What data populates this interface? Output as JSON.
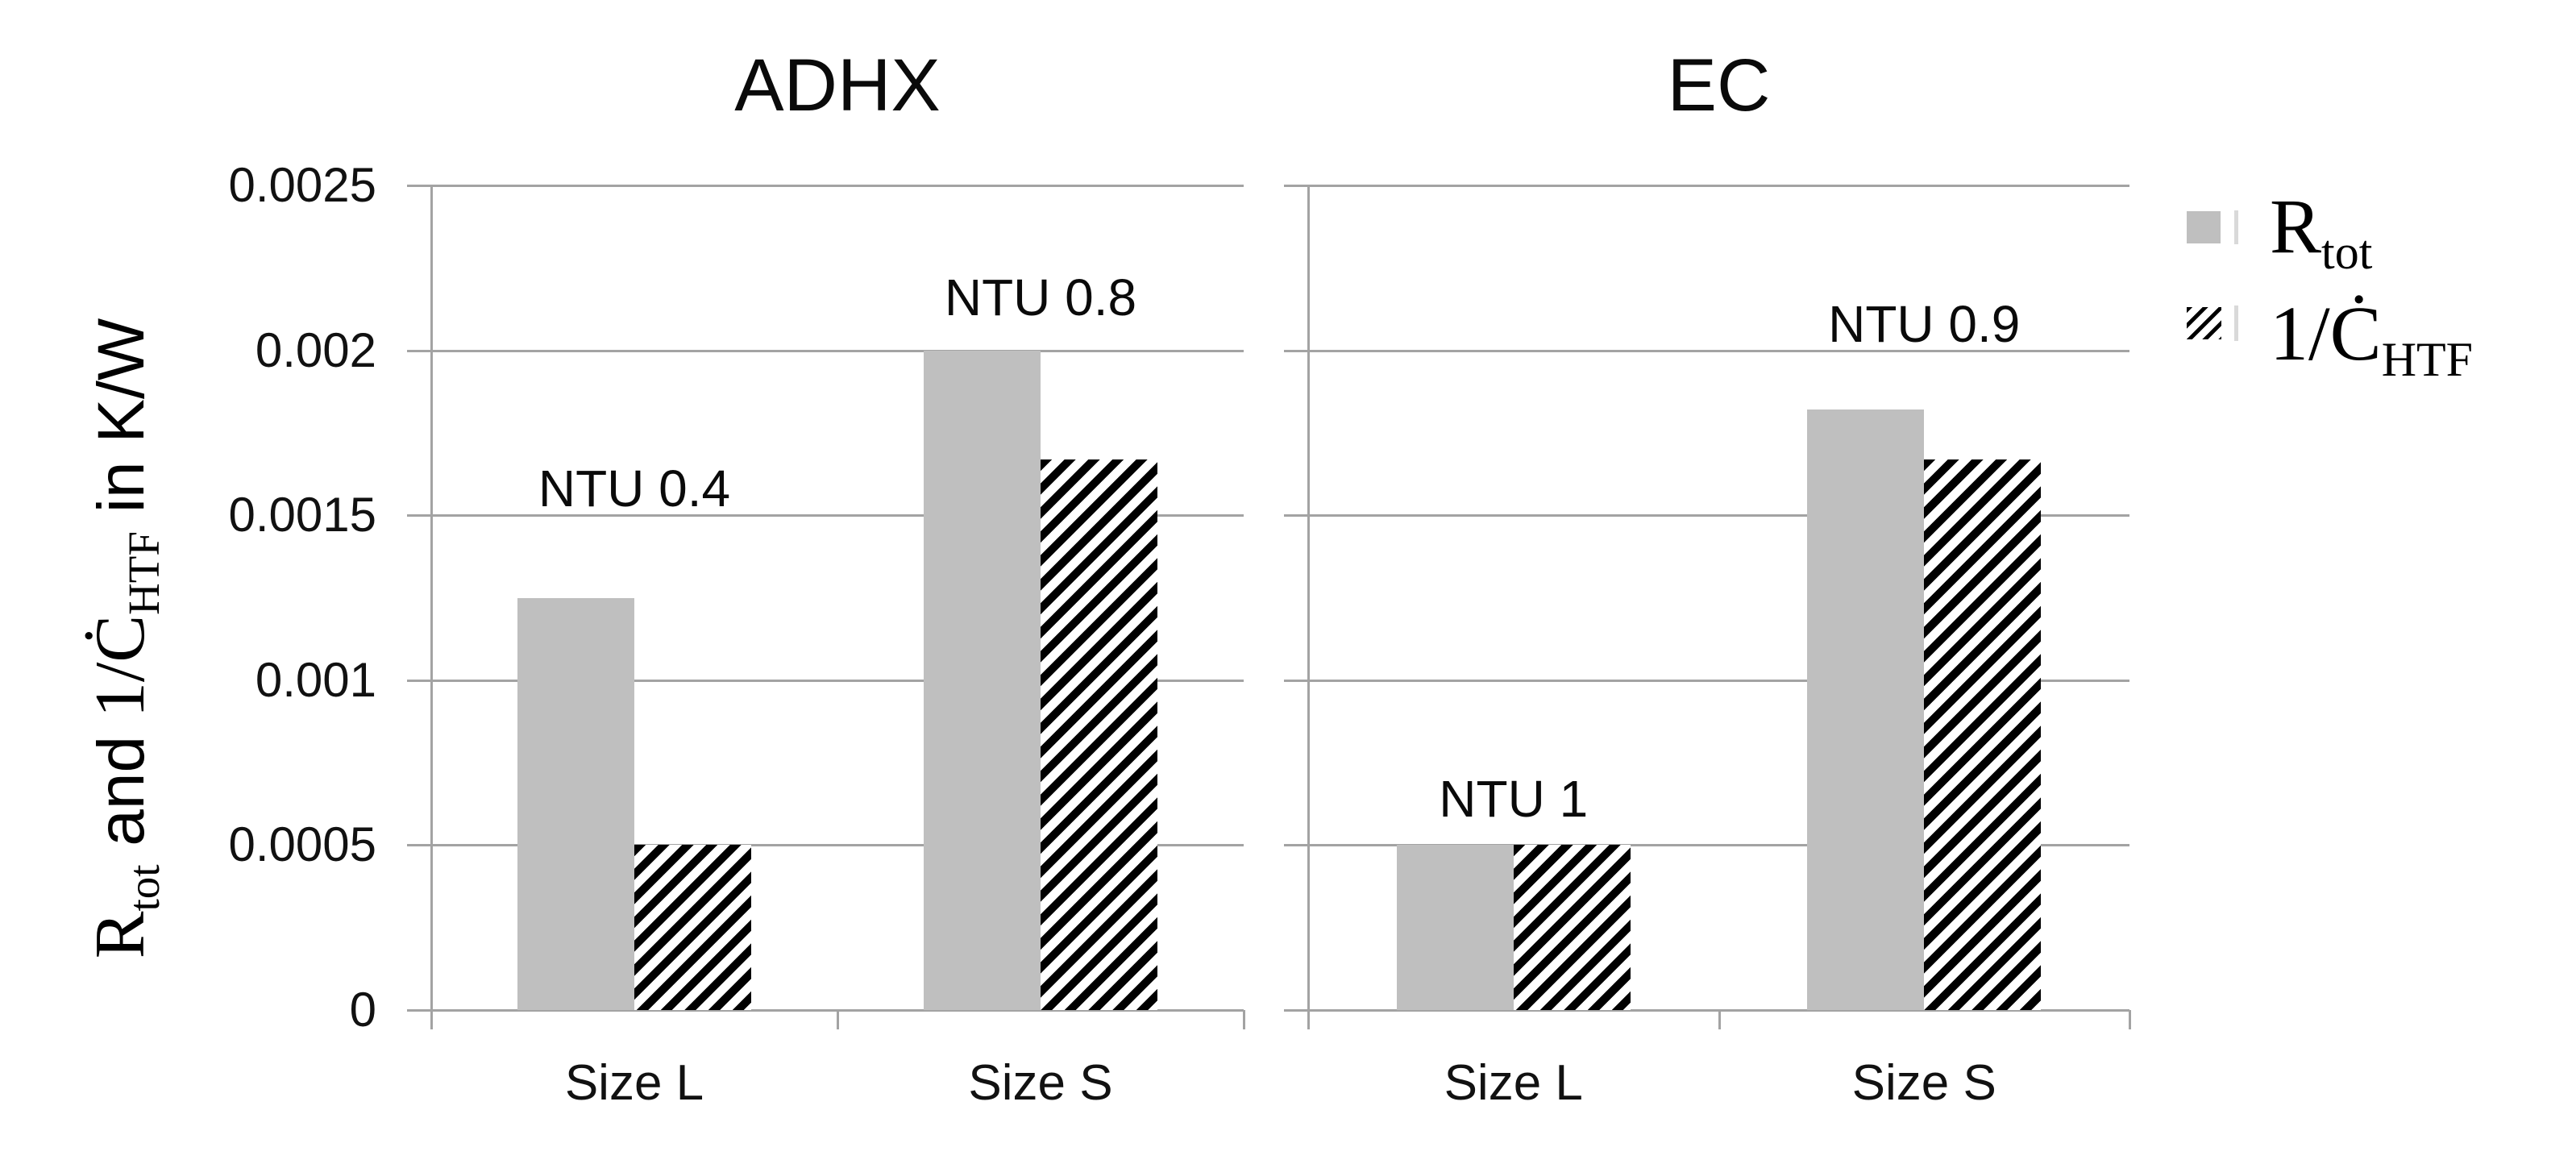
{
  "chart_data": {
    "type": "bar",
    "title": "",
    "ylabel_plain": "Rtot and 1/ĊHTF in K/W",
    "ylabel_parts": [
      {
        "t": "R",
        "style": "serif",
        "sub": false
      },
      {
        "t": "tot",
        "style": "serif",
        "sub": true
      },
      {
        "t": " and ",
        "style": "sans",
        "sub": false
      },
      {
        "t": "1/Ċ",
        "style": "serif",
        "sub": false
      },
      {
        "t": "HTF",
        "style": "serif",
        "sub": true
      },
      {
        "t": " in K/W",
        "style": "sans",
        "sub": false
      }
    ],
    "y_axis": {
      "min": 0,
      "max": 0.0025,
      "step": 0.0005,
      "tick_labels": [
        "0",
        "0.0005",
        "0.001",
        "0.0015",
        "0.002",
        "0.0025"
      ],
      "unit": "K/W",
      "grid": true
    },
    "panels": [
      {
        "title": "ADHX",
        "categories": [
          "Size L",
          "Size S"
        ],
        "series": [
          {
            "name": "Rtot",
            "swatch": "solid",
            "values": [
              0.00125,
              0.002
            ]
          },
          {
            "name": "1/CHTF",
            "swatch": "hatch",
            "values": [
              0.0005,
              0.00167
            ]
          }
        ],
        "annotations": [
          {
            "text": "NTU 0.4",
            "category": 0,
            "y_value": 0.00158
          },
          {
            "text": "NTU 0.8",
            "category": 1,
            "y_value": 0.00216
          }
        ]
      },
      {
        "title": "EC",
        "categories": [
          "Size L",
          "Size S"
        ],
        "series": [
          {
            "name": "Rtot",
            "swatch": "solid",
            "values": [
              0.0005,
              0.00182
            ]
          },
          {
            "name": "1/CHTF",
            "swatch": "hatch",
            "values": [
              0.0005,
              0.00167
            ]
          }
        ],
        "annotations": [
          {
            "text": "NTU 1",
            "category": 0,
            "y_value": 0.00064
          },
          {
            "text": "NTU 0.9",
            "category": 1,
            "y_value": 0.00208
          }
        ]
      }
    ],
    "legend": {
      "position": "right",
      "entries": [
        {
          "main": "R",
          "sub": "tot",
          "swatch": "solid"
        },
        {
          "main": "1/Ċ",
          "sub": "HTF",
          "swatch": "hatch"
        }
      ]
    },
    "colors": {
      "bar_fill": "#bfbfbf",
      "hatch": "#000000",
      "axis_line": "#a3a3a3",
      "gridline": "#a3a3a3",
      "text": "#000000"
    }
  }
}
